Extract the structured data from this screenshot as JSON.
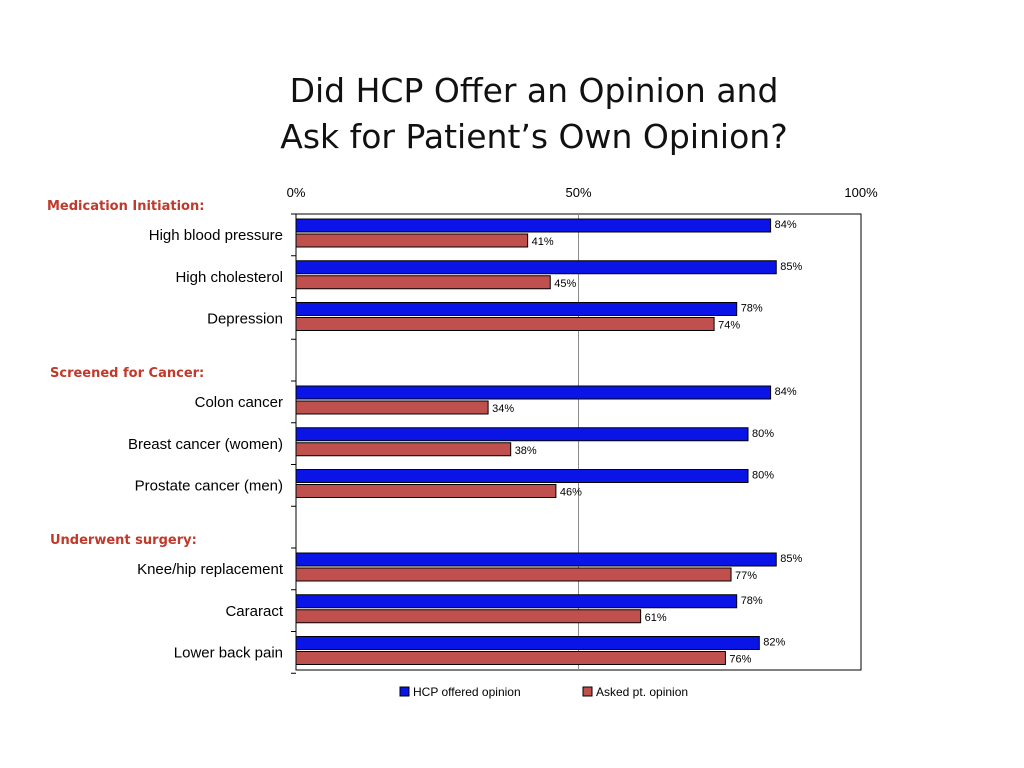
{
  "chart_data": {
    "type": "bar",
    "orientation": "horizontal",
    "title_lines": [
      "Did HCP Offer an Opinion and",
      "Ask for Patient’s Own Opinion?"
    ],
    "xlim": [
      0,
      100
    ],
    "xticks": [
      {
        "value": 0,
        "label": "0%"
      },
      {
        "value": 50,
        "label": "50%"
      },
      {
        "value": 100,
        "label": "100%"
      }
    ],
    "gridlines": [
      50
    ],
    "groups": [
      {
        "heading": "Medication Initiation:",
        "categories": [
          "High blood pressure",
          "High cholesterol",
          "Depression"
        ]
      },
      {
        "heading": "Screened for Cancer:",
        "categories": [
          "Colon cancer",
          "Breast cancer (women)",
          "Prostate cancer (men)"
        ]
      },
      {
        "heading": "Underwent surgery:",
        "categories": [
          "Knee/hip replacement",
          "Cararact",
          "Lower back pain"
        ]
      }
    ],
    "series": [
      {
        "name": "HCP offered opinion",
        "color": "#0a14e6",
        "values": [
          84,
          85,
          78,
          84,
          80,
          80,
          85,
          78,
          82
        ],
        "labels": [
          "84%",
          "85%",
          "78%",
          "84%",
          "80%",
          "80%",
          "85%",
          "78%",
          "82%"
        ]
      },
      {
        "name": "Asked pt. opinion",
        "color": "#c0504d",
        "values": [
          41,
          45,
          74,
          34,
          38,
          46,
          77,
          61,
          76
        ],
        "labels": [
          "41%",
          "45%",
          "74%",
          "34%",
          "38%",
          "46%",
          "77%",
          "61%",
          "76%"
        ]
      }
    ],
    "legend_position": "bottom",
    "group_heading_color": "#c0392b"
  }
}
